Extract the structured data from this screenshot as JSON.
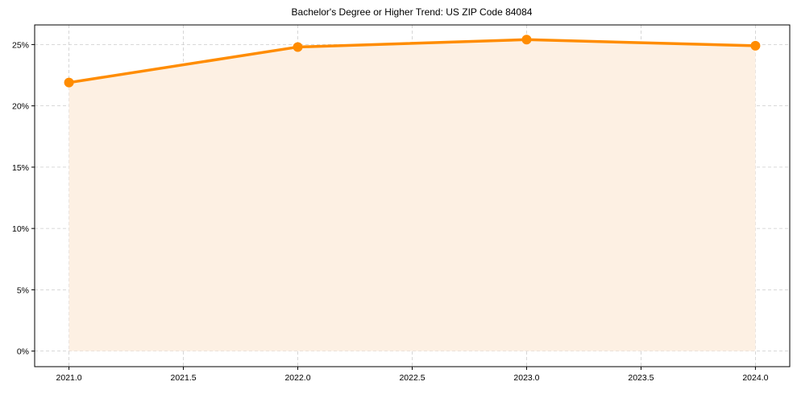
{
  "chart_data": {
    "type": "line",
    "title": "Bachelor's Degree or Higher Trend: US ZIP Code 84084",
    "xlabel": "",
    "ylabel": "",
    "x": [
      2021,
      2022,
      2023,
      2024
    ],
    "series": [
      {
        "name": "Bachelor's Degree or Higher",
        "values": [
          21.9,
          24.8,
          25.4,
          24.9
        ],
        "color": "#ff8c00",
        "fill_color": "#fdf0e3",
        "marker": "circle",
        "area_fill": true
      }
    ],
    "xticks": [
      2021.0,
      2021.5,
      2022.0,
      2022.5,
      2023.0,
      2023.5,
      2024.0
    ],
    "xtick_labels": [
      "2021.0",
      "2021.5",
      "2022.0",
      "2022.5",
      "2023.0",
      "2023.5",
      "2024.0"
    ],
    "yticks": [
      0,
      5,
      10,
      15,
      20,
      25
    ],
    "ytick_labels": [
      "0%",
      "5%",
      "10%",
      "15%",
      "20%",
      "25%"
    ],
    "xlim": [
      2020.85,
      2024.15
    ],
    "ylim": [
      -1.27,
      26.6
    ],
    "grid": true,
    "grid_style": "dashed",
    "legend": null
  }
}
